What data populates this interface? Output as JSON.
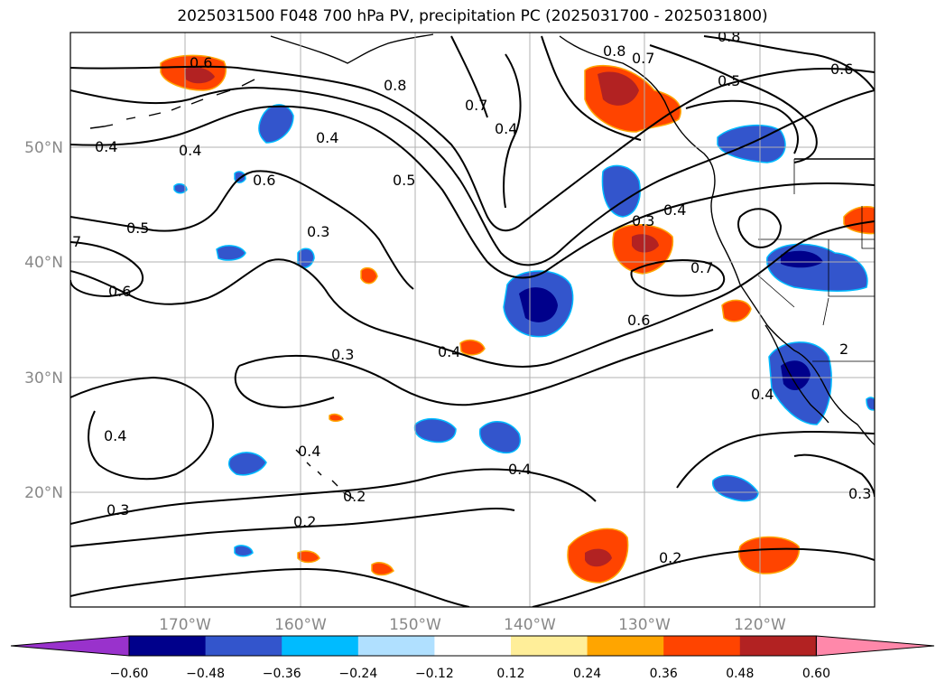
{
  "title": "2025031500 F048 700 hPa PV, precipitation PC (2025031700 - 2025031800)",
  "map": {
    "lon_ticks": [
      "170°W",
      "160°W",
      "150°W",
      "140°W",
      "130°W",
      "120°W"
    ],
    "lat_ticks": [
      "50°N",
      "40°N",
      "30°N",
      "20°N"
    ],
    "contour_labels": [
      "0.6",
      "0.4",
      "0.4",
      "0.4",
      "0.6",
      "0.5",
      "0.6",
      "7",
      "0.3",
      "0.8",
      "0.5",
      "0.7",
      "0.4",
      "0.8",
      "0.7",
      "0.5",
      "0.6",
      "0.3",
      "0.4",
      "0.7",
      "0.6",
      "0.4",
      "0.3",
      "0.4",
      "0.4",
      "0.4",
      "0.2",
      "0.3",
      "0.2",
      "0.4",
      "0.3",
      "0.2",
      "0.8",
      "2"
    ]
  },
  "colorbar": {
    "colors": [
      "#9932CC",
      "#00008B",
      "#3355CC",
      "#00BBFF",
      "#B0E0FF",
      "#FFFFFF",
      "#FFEE99",
      "#FFA500",
      "#FF4400",
      "#B22222",
      "#FF88AA"
    ],
    "labels": [
      "−0.60",
      "−0.48",
      "−0.36",
      "−0.24",
      "−0.12",
      "0.12",
      "0.24",
      "0.36",
      "0.48",
      "0.60"
    ]
  }
}
